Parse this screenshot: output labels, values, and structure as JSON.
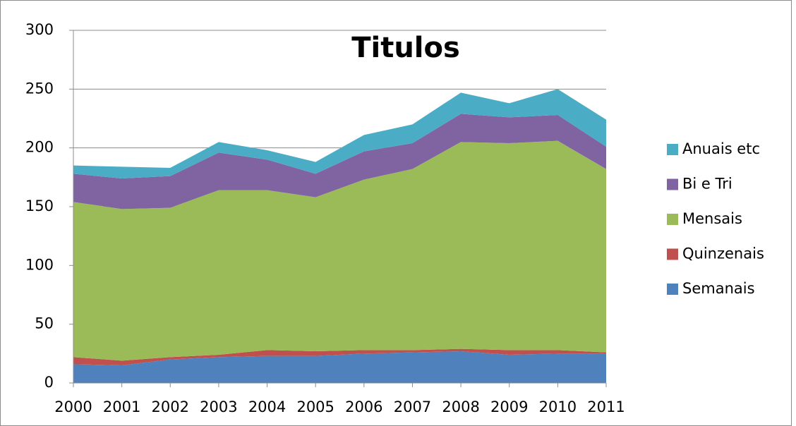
{
  "chart_data": {
    "type": "stacked_area",
    "title": "Titulos",
    "categories": [
      "2000",
      "2001",
      "2002",
      "2003",
      "2004",
      "2005",
      "2006",
      "2007",
      "2008",
      "2009",
      "2010",
      "2011"
    ],
    "series": [
      {
        "name": "Semanais",
        "color": "#4f81bd",
        "values": [
          16,
          15,
          20,
          22,
          23,
          23,
          25,
          26,
          27,
          24,
          25,
          25
        ]
      },
      {
        "name": "Quinzenais",
        "color": "#c0504d",
        "values": [
          6,
          4,
          2,
          2,
          5,
          4,
          3,
          2,
          2,
          4,
          3,
          1
        ]
      },
      {
        "name": "Mensais",
        "color": "#9bbb59",
        "values": [
          132,
          129,
          127,
          140,
          136,
          131,
          145,
          154,
          176,
          176,
          178,
          156
        ]
      },
      {
        "name": "Bi e Tri",
        "color": "#8064a2",
        "values": [
          24,
          26,
          27,
          32,
          26,
          20,
          24,
          22,
          24,
          22,
          22,
          19
        ]
      },
      {
        "name": "Anuais etc",
        "color": "#4bacc6",
        "values": [
          7,
          10,
          7,
          9,
          8,
          10,
          14,
          16,
          18,
          12,
          22,
          23
        ]
      }
    ],
    "ylim": [
      0,
      300
    ],
    "yticks": [
      0,
      50,
      100,
      150,
      200,
      250,
      300
    ],
    "grid": true,
    "legend": "right"
  }
}
